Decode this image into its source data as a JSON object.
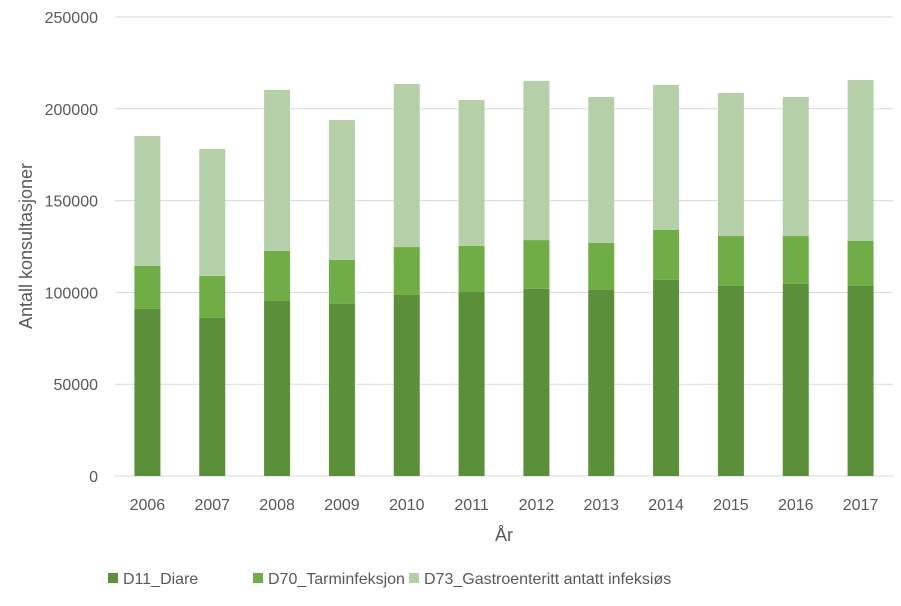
{
  "chart_data": {
    "type": "bar",
    "stacked": true,
    "title": "",
    "xlabel": "År",
    "ylabel": "Antall konsultasjoner",
    "ylim": [
      0,
      250000
    ],
    "yticks": [
      "0",
      "50000",
      "100000",
      "150000",
      "200000",
      "250000"
    ],
    "ytick_values": [
      0,
      50000,
      100000,
      150000,
      200000,
      250000
    ],
    "grid": true,
    "legend_position": "bottom",
    "categories": [
      "2006",
      "2007",
      "2008",
      "2009",
      "2010",
      "2011",
      "2012",
      "2013",
      "2014",
      "2015",
      "2016",
      "2017"
    ],
    "series": [
      {
        "name": "D11_Diare",
        "color": "#5b8f3a",
        "values": [
          91000,
          86100,
          95300,
          93700,
          98600,
          100200,
          101900,
          101300,
          106800,
          103500,
          104600,
          103500
        ]
      },
      {
        "name": "D70_Tarminfeksjon",
        "color": "#70ad47",
        "values": [
          23400,
          22900,
          27300,
          24000,
          26100,
          25100,
          26600,
          25600,
          27200,
          27200,
          26100,
          24500
        ]
      },
      {
        "name": "D73_Gastroenteritt antatt infeksiøs",
        "color": "#b5cfa8",
        "values": [
          70800,
          69100,
          87700,
          76200,
          88800,
          79500,
          86700,
          79500,
          79000,
          77900,
          75700,
          87700
        ]
      }
    ]
  }
}
